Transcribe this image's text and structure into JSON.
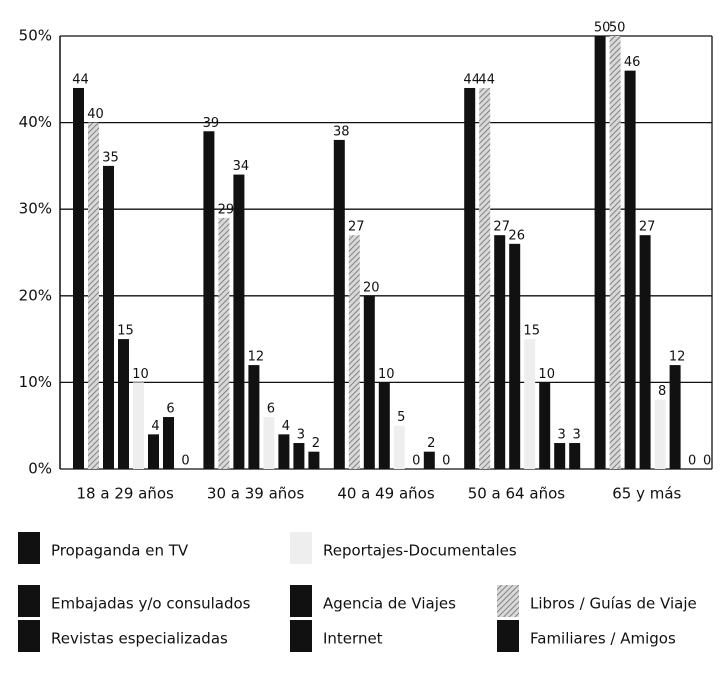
{
  "chart_data": {
    "type": "bar",
    "categories": [
      "18 a 29 años",
      "30 a 39 años",
      "40 a 49 años",
      "50 a 64 años",
      "65 y más"
    ],
    "series": [
      {
        "name": "Propaganda en TV",
        "color": "#111111",
        "values": [
          44,
          39,
          38,
          44,
          50
        ]
      },
      {
        "name": "Libros / Guías de Viaje",
        "color": "#b5b5b5",
        "values": [
          40,
          29,
          27,
          44,
          50
        ]
      },
      {
        "name": "Embajadas y/o consulados",
        "color": "#111111",
        "values": [
          35,
          34,
          20,
          27,
          46
        ]
      },
      {
        "name": "Agencia de Viajes",
        "color": "#111111",
        "values": [
          15,
          12,
          10,
          26,
          27
        ]
      },
      {
        "name": "Reportajes-Documentales",
        "color": "#eeeeee",
        "values": [
          10,
          6,
          5,
          15,
          8
        ]
      },
      {
        "name": "Revistas especializadas",
        "color": "#111111",
        "values": [
          4,
          4,
          0,
          10,
          12
        ]
      },
      {
        "name": "Internet",
        "color": "#111111",
        "values": [
          6,
          3,
          2,
          3,
          0
        ]
      },
      {
        "name": "Familiares / Amigos",
        "color": "#111111",
        "values": [
          0,
          2,
          0,
          3,
          0
        ]
      }
    ],
    "ylim": [
      0,
      50
    ],
    "yticks": [
      {
        "value": 0,
        "label": "0%"
      },
      {
        "value": 10,
        "label": "10%"
      },
      {
        "value": 20,
        "label": "20%"
      },
      {
        "value": 30,
        "label": "30%"
      },
      {
        "value": 40,
        "label": "40%"
      },
      {
        "value": 50,
        "label": "50%"
      }
    ],
    "grid": true
  }
}
